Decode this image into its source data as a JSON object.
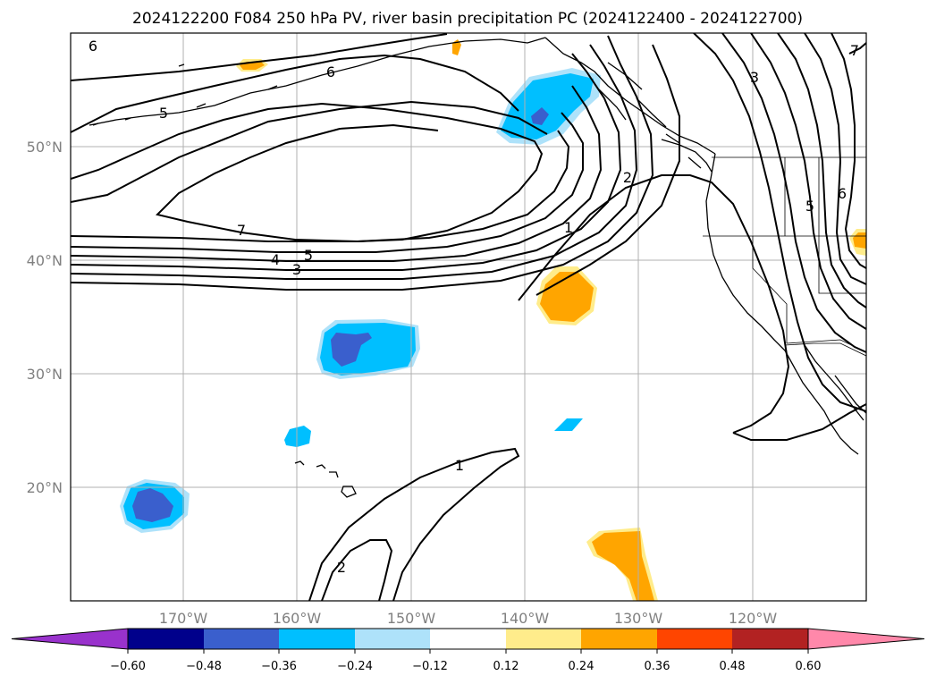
{
  "title": "2024122200 F084 250 hPa PV, river basin precipitation PC (2024122400 - 2024122700)",
  "map": {
    "lon_range": [
      -180,
      -110
    ],
    "lat_range": [
      10,
      60
    ],
    "lon_ticks": [
      -170,
      -160,
      -150,
      -140,
      -130,
      -120
    ],
    "lon_tick_labels": [
      "170°W",
      "160°W",
      "150°W",
      "140°W",
      "130°W",
      "120°W"
    ],
    "lat_ticks": [
      20,
      30,
      40,
      50
    ],
    "lat_tick_labels": [
      "20°N",
      "30°N",
      "40°N",
      "50°N"
    ],
    "grid": true
  },
  "pv_contour_labels": [
    "6",
    "6",
    "5",
    "7",
    "5",
    "4",
    "3",
    "2",
    "1",
    "1",
    "2",
    "3",
    "5",
    "6",
    "7"
  ],
  "colorbar": {
    "ticks": [
      "−0.60",
      "−0.48",
      "−0.36",
      "−0.24",
      "−0.12",
      "0.12",
      "0.24",
      "0.36",
      "0.48",
      "0.60"
    ],
    "colors": [
      "#9932cc",
      "#00008b",
      "#3a5fcd",
      "#00bfff",
      "#aee2fa",
      "#ffffff",
      "#ffec8b",
      "#ffa500",
      "#ff4500",
      "#b22222",
      "#ff88aa"
    ],
    "extend": "both"
  },
  "colors": {
    "neg_strong": "#3a5fcd",
    "neg_mid": "#00bfff",
    "neg_weak": "#aee2fa",
    "pos_weak": "#ffec8b",
    "pos_mid": "#ffa500",
    "contour": "#000000",
    "grid": "#b0b0b0"
  }
}
